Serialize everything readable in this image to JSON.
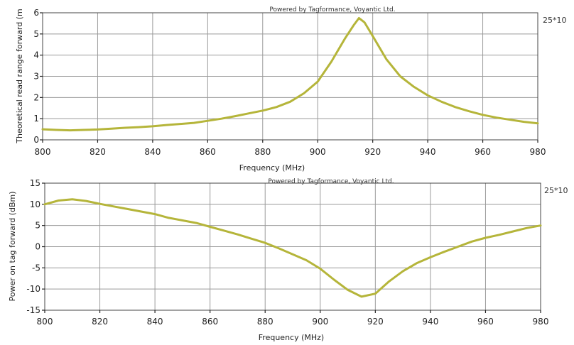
{
  "colors": {
    "series": "#b5b53a",
    "grid": "#9a9a9a",
    "corner_text": "#5a7a7a"
  },
  "chart_data": [
    {
      "type": "line",
      "credit": "Powered by Tagformance, Voyantic Ltd.",
      "corner_label": "25*10",
      "xlabel": "Frequency (MHz)",
      "ylabel": "Theoretical read range forward (m",
      "xlim": [
        800,
        980
      ],
      "ylim": [
        0,
        6
      ],
      "xticks": [
        800,
        820,
        840,
        860,
        880,
        900,
        920,
        940,
        960,
        980
      ],
      "yticks": [
        0,
        1,
        2,
        3,
        4,
        5,
        6
      ],
      "grid": true,
      "series": [
        {
          "x": [
            800,
            805,
            810,
            815,
            820,
            825,
            830,
            835,
            840,
            845,
            850,
            855,
            860,
            865,
            870,
            875,
            880,
            885,
            890,
            895,
            900,
            905,
            910,
            913,
            915,
            917,
            920,
            925,
            930,
            935,
            940,
            945,
            950,
            955,
            960,
            965,
            970,
            975,
            980
          ],
          "values": [
            0.5,
            0.47,
            0.45,
            0.47,
            0.49,
            0.53,
            0.57,
            0.6,
            0.64,
            0.7,
            0.75,
            0.8,
            0.9,
            1.0,
            1.12,
            1.25,
            1.38,
            1.55,
            1.8,
            2.2,
            2.75,
            3.7,
            4.8,
            5.4,
            5.75,
            5.55,
            4.9,
            3.8,
            3.0,
            2.5,
            2.1,
            1.8,
            1.55,
            1.35,
            1.18,
            1.05,
            0.95,
            0.85,
            0.78
          ]
        }
      ]
    },
    {
      "type": "line",
      "credit": "Powered by Tagformance, Voyantic Ltd.",
      "corner_label": "25*10",
      "xlabel": "Frequency (MHz)",
      "ylabel": "Power on tag forward (dBm)",
      "xlim": [
        800,
        980
      ],
      "ylim": [
        -15,
        15
      ],
      "xticks": [
        800,
        820,
        840,
        860,
        880,
        900,
        920,
        940,
        960,
        980
      ],
      "yticks": [
        15,
        10,
        5,
        0,
        -5,
        -10,
        -15
      ],
      "grid": true,
      "series": [
        {
          "x": [
            800,
            805,
            810,
            815,
            820,
            825,
            830,
            835,
            840,
            845,
            850,
            855,
            860,
            865,
            870,
            875,
            880,
            885,
            890,
            895,
            900,
            905,
            910,
            915,
            920,
            925,
            930,
            935,
            940,
            945,
            950,
            955,
            960,
            965,
            970,
            975,
            980
          ],
          "values": [
            10,
            10.9,
            11.2,
            10.8,
            10.1,
            9.5,
            8.9,
            8.3,
            7.7,
            6.8,
            6.2,
            5.6,
            4.7,
            3.8,
            2.9,
            1.9,
            0.9,
            -0.4,
            -1.8,
            -3.2,
            -5.2,
            -7.8,
            -10.2,
            -11.8,
            -11.1,
            -8.2,
            -5.8,
            -3.9,
            -2.5,
            -1.2,
            0.0,
            1.2,
            2.1,
            2.8,
            3.6,
            4.4,
            5.0
          ]
        }
      ]
    }
  ]
}
